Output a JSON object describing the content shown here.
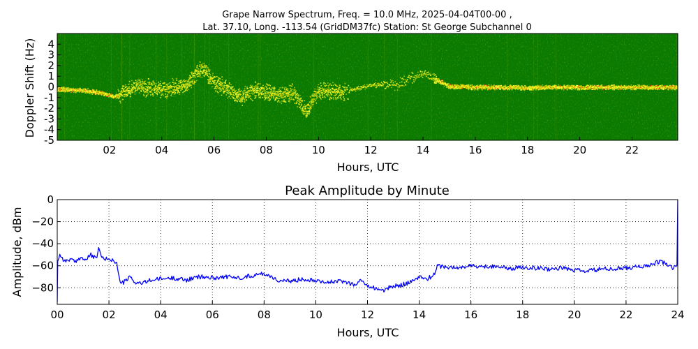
{
  "figure": {
    "title_line1": "Grape Narrow Spectrum, Freq. = 10.0 MHz, 2025-04-04T00-00 ,",
    "title_line2": "Lat.  37.10, Long. -113.54 (GridDM37fc) Station: St George Subchannel 0"
  },
  "chart_data": [
    {
      "type": "heatmap",
      "xlabel": "Hours, UTC",
      "ylabel": "Doppler Shift (Hz)",
      "xlim": [
        0,
        23.75
      ],
      "ylim": [
        -5,
        5
      ],
      "x_tick_labels": [
        "02",
        "04",
        "06",
        "08",
        "10",
        "12",
        "14",
        "16",
        "18",
        "20",
        "22"
      ],
      "x_tick_values": [
        2,
        4,
        6,
        8,
        10,
        12,
        14,
        16,
        18,
        20,
        22
      ],
      "y_tick_labels": [
        "4",
        "3",
        "2",
        "1",
        "0",
        "-1",
        "-2",
        "-3",
        "-4",
        "-5"
      ],
      "y_tick_values": [
        4,
        3,
        2,
        1,
        0,
        -1,
        -2,
        -3,
        -4,
        -5
      ],
      "background_color": "#0a7a00",
      "signal_colors": [
        "#c8d400",
        "#ffff33",
        "#ff2200"
      ],
      "carrier_trace": {
        "x": [
          0,
          1,
          1.8,
          2.2,
          2.5,
          3,
          4,
          5,
          5.5,
          6,
          6.5,
          7,
          7.5,
          8,
          8.5,
          9,
          9.5,
          10,
          11,
          12,
          13,
          14,
          15,
          16,
          17,
          18,
          19,
          20,
          21,
          22,
          23,
          23.75
        ],
        "y": [
          -0.2,
          -0.3,
          -0.6,
          -0.9,
          -0.5,
          0.1,
          -0.2,
          0.3,
          1.8,
          0.5,
          -0.2,
          -1.0,
          -0.3,
          -0.5,
          -0.8,
          -0.5,
          -2.2,
          -0.3,
          -0.4,
          0.2,
          0.3,
          1.3,
          0.1,
          0.0,
          0.0,
          -0.05,
          0.0,
          0.0,
          0.0,
          0.0,
          0.0,
          0.0
        ]
      }
    },
    {
      "type": "line",
      "title": "Peak Amplitude by Minute",
      "xlabel": "Hours, UTC",
      "ylabel": "Amplitude, dBm",
      "xlim": [
        0,
        24
      ],
      "ylim": [
        -95,
        0
      ],
      "grid": true,
      "line_color": "#0000ff",
      "x_tick_labels": [
        "00",
        "02",
        "04",
        "06",
        "08",
        "10",
        "12",
        "14",
        "16",
        "18",
        "20",
        "22",
        "24"
      ],
      "x_tick_values": [
        0,
        2,
        4,
        6,
        8,
        10,
        12,
        14,
        16,
        18,
        20,
        22,
        24
      ],
      "y_tick_labels": [
        "0",
        "−20",
        "−40",
        "−60",
        "−80"
      ],
      "y_tick_values": [
        0,
        -20,
        -40,
        -60,
        -80
      ],
      "series": [
        {
          "x": [
            0,
            0.02,
            0.1,
            0.3,
            0.5,
            0.7,
            0.9,
            1.1,
            1.3,
            1.5,
            1.6,
            1.8,
            2.0,
            2.2,
            2.3,
            2.4,
            2.5,
            2.7,
            2.8,
            3.0,
            3.3,
            3.6,
            4.0,
            4.5,
            5.0,
            5.5,
            6.0,
            6.5,
            7.0,
            7.5,
            8.0,
            8.3,
            8.6,
            9.0,
            9.5,
            10.0,
            10.5,
            11.0,
            11.5,
            11.8,
            12.0,
            12.3,
            12.6,
            12.9,
            13.2,
            13.5,
            13.8,
            14.0,
            14.3,
            14.6,
            14.7,
            15.0,
            15.5,
            16.0,
            16.5,
            17.0,
            17.5,
            18.0,
            18.5,
            19.0,
            19.5,
            20.0,
            20.5,
            21.0,
            21.5,
            22.0,
            22.5,
            23.0,
            23.3,
            23.6,
            23.8,
            23.9,
            23.97,
            24.0
          ],
          "y": [
            -93,
            -55,
            -50,
            -56,
            -54,
            -57,
            -52,
            -55,
            -50,
            -54,
            -45,
            -55,
            -53,
            -56,
            -58,
            -72,
            -76,
            -73,
            -70,
            -75,
            -76,
            -73,
            -72,
            -71,
            -73,
            -70,
            -71,
            -70,
            -71,
            -69,
            -67,
            -70,
            -74,
            -74,
            -72,
            -73,
            -75,
            -74,
            -77,
            -73,
            -79,
            -80,
            -83,
            -79,
            -78,
            -76,
            -74,
            -70,
            -72,
            -68,
            -60,
            -61,
            -62,
            -60,
            -61,
            -60,
            -63,
            -61,
            -62,
            -63,
            -62,
            -64,
            -65,
            -63,
            -63,
            -62,
            -61,
            -59,
            -56,
            -59,
            -62,
            -61,
            -59,
            0
          ]
        }
      ]
    }
  ]
}
